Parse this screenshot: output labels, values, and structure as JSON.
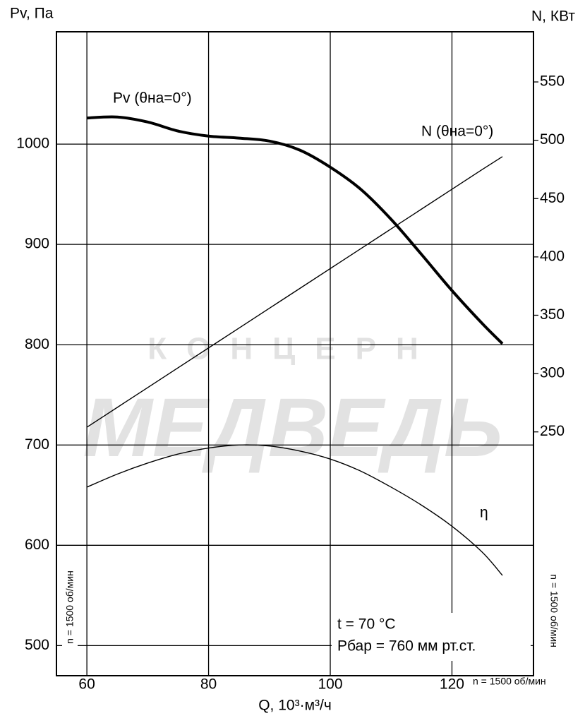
{
  "chart_data": {
    "type": "line",
    "y_label": "Pv, Па",
    "y2_label": "N, КВт",
    "x_label": "Q, 10³·м³/ч",
    "xlim": [
      55,
      133.4
    ],
    "xticks": [
      60,
      80,
      100,
      120
    ],
    "ylim": [
      470,
      1112
    ],
    "yticks": [
      500,
      600,
      700,
      800,
      900,
      1000
    ],
    "y2lim": [
      41,
      593
    ],
    "y2ticks": [
      250,
      300,
      350,
      400,
      450,
      500,
      550
    ],
    "grid": true,
    "x": [
      60,
      65,
      70,
      75,
      80,
      85,
      90,
      95,
      100,
      105,
      110,
      115,
      120,
      125,
      128.3
    ],
    "series": [
      {
        "name": "Pv (θна=0°)",
        "color": "#000000",
        "values": [
          1026,
          1027,
          1022,
          1013,
          1008,
          1006,
          1003,
          994,
          977,
          955,
          925,
          890,
          854,
          821,
          801
        ]
      },
      {
        "name": "N (θна=0°)",
        "color": "#000000",
        "axis": "y2",
        "values": [
          254,
          271,
          288,
          305,
          322,
          339,
          356,
          373,
          390,
          407,
          424,
          441,
          458,
          475,
          486
        ]
      },
      {
        "name": "η",
        "color": "#000000",
        "values": [
          658,
          671,
          682,
          691,
          697,
          700,
          699,
          694,
          686,
          674,
          658,
          640,
          619,
          593,
          570
        ]
      }
    ],
    "annotations": [
      "t = 70 °C",
      "Pбар = 760 мм рт.ст."
    ],
    "speed_label": "n = 1500 об/мин",
    "watermark": [
      "КОНЦЕРН",
      "МЕДВЕДЬ"
    ]
  }
}
